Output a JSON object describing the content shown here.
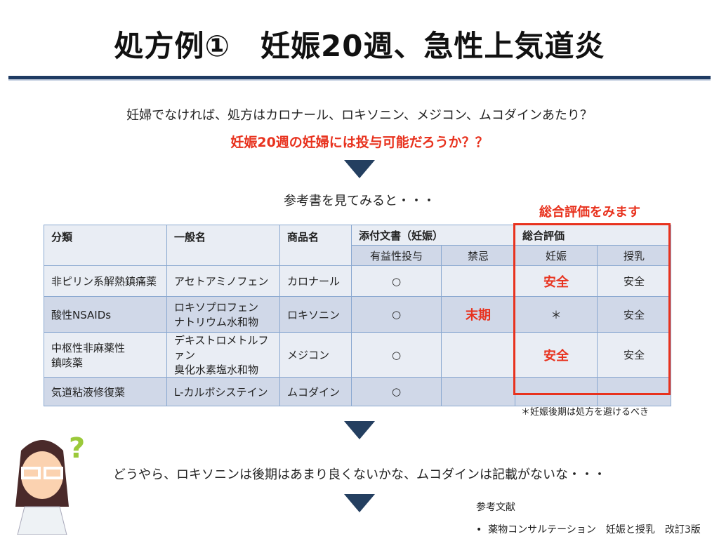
{
  "title": "処方例①　妊娠20週、急性上気道炎",
  "intro": "妊婦でなければ、処方はカロナール、ロキソニン、メジコン、ムコダインあたり？",
  "question": "妊娠20週の妊婦には投与可能だろうか？？",
  "lookup": "参考書を見てみると・・・",
  "callout": "総合評価をみます",
  "table": {
    "headers": {
      "category": "分類",
      "generic": "一般名",
      "brand": "商品名",
      "insert": "添付文書（妊娠）",
      "overall": "総合評価",
      "beneficial": "有益性投与",
      "contraindicated": "禁忌",
      "pregnancy": "妊娠",
      "lactation": "授乳"
    },
    "rows": [
      {
        "category": "非ピリン系解熱鎮痛薬",
        "generic": "アセトアミノフェン",
        "brand": "カロナール",
        "beneficial": "○",
        "contraindicated": "",
        "pregnancy": "安全",
        "lactation": "安全"
      },
      {
        "category": "酸性NSAIDs",
        "generic": "ロキソプロフェン\nナトリウム水和物",
        "brand": "ロキソニン",
        "beneficial": "○",
        "contraindicated": "末期",
        "pregnancy": "＊",
        "lactation": "安全"
      },
      {
        "category": "中枢性非麻薬性\n鎮咳薬",
        "generic": "デキストロメトルファン\n臭化水素塩水和物",
        "brand": "メジコン",
        "beneficial": "○",
        "contraindicated": "",
        "pregnancy": "安全",
        "lactation": "安全"
      },
      {
        "category": "気道粘液修復薬",
        "generic": "L-カルボシステイン",
        "brand": "ムコダイン",
        "beneficial": "○",
        "contraindicated": "",
        "pregnancy": "",
        "lactation": ""
      }
    ]
  },
  "footnote": "＊妊娠後期は処方を避けるべき",
  "conclusion": "どうやら、ロキソニンは後期はあまり良くないかな、ムコダインは記載がないな・・・",
  "references": {
    "heading": "参考文献",
    "items": [
      "薬物コンサルテーション　妊娠と授乳　改訂3版"
    ]
  },
  "colors": {
    "accent": "#e8321e",
    "navy": "#243f60"
  }
}
